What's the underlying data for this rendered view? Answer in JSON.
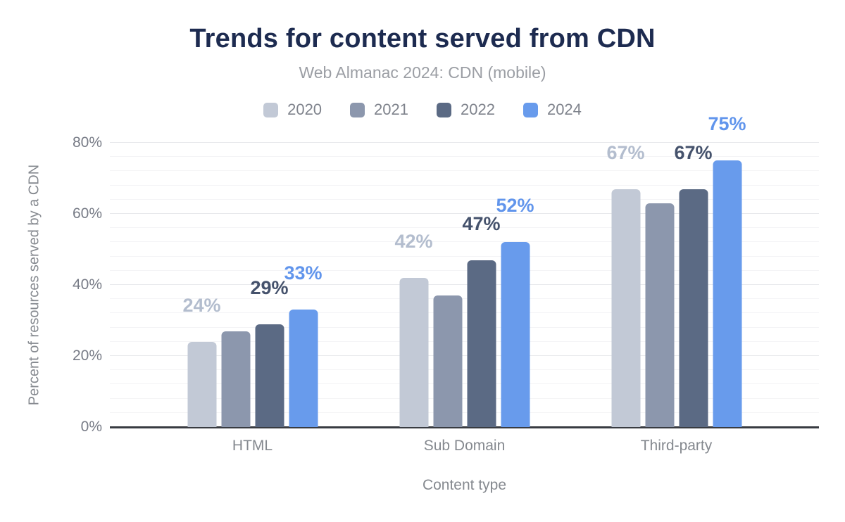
{
  "title": "Trends for content served from CDN",
  "subtitle": "Web Almanac 2024: CDN (mobile)",
  "chart_data": {
    "type": "bar",
    "title": "Trends for content served from CDN",
    "subtitle": "Web Almanac 2024: CDN (mobile)",
    "categories": [
      "HTML",
      "Sub Domain",
      "Third-party"
    ],
    "series": [
      {
        "name": "2020",
        "color": "#c2c9d6",
        "label_color": "#b3bdce",
        "values": [
          24,
          42,
          67
        ],
        "data_labels": [
          "24%",
          "42%",
          "67%"
        ]
      },
      {
        "name": "2021",
        "color": "#8c97ad",
        "label_color": "#8c97ad",
        "values": [
          27,
          37,
          63
        ],
        "data_labels": [
          "",
          "",
          ""
        ]
      },
      {
        "name": "2022",
        "color": "#5b6a84",
        "label_color": "#45526c",
        "values": [
          29,
          47,
          67
        ],
        "data_labels": [
          "29%",
          "47%",
          "67%"
        ]
      },
      {
        "name": "2024",
        "color": "#689bec",
        "label_color": "#6195ec",
        "values": [
          33,
          52,
          75
        ],
        "data_labels": [
          "33%",
          "52%",
          "75%"
        ]
      }
    ],
    "xlabel": "Content type",
    "ylabel": "Percent of resources served by a CDN",
    "yticks": [
      {
        "pct": 0,
        "label": "0%"
      },
      {
        "pct": 20,
        "label": "20%"
      },
      {
        "pct": 40,
        "label": "40%"
      },
      {
        "pct": 60,
        "label": "60%"
      },
      {
        "pct": 80,
        "label": "80%"
      }
    ],
    "ylim": [
      0,
      80
    ],
    "grid": {
      "minor_step_pct": 4,
      "major_step_pct": 20
    },
    "legend_position": "top",
    "legend_entries": [
      "2020",
      "2021",
      "2022",
      "2024"
    ]
  },
  "colors": {
    "background": "#ffffff",
    "title": "#1d2b50",
    "subtitle": "#9b9ea4",
    "legend_text": "#7f838c",
    "axis_text": "#85898f",
    "tick_text": "#777b86",
    "axis_line": "#383b41",
    "grid_minor": "#f4f4f6",
    "grid_major": "#e8e9ec"
  }
}
